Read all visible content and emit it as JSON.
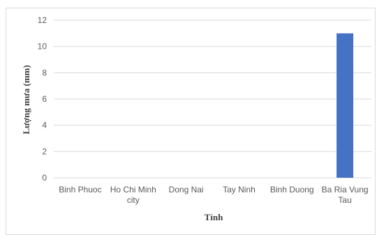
{
  "chart_data": {
    "type": "bar",
    "title": "",
    "xlabel": "Tỉnh",
    "ylabel": "Lượng mưa (mm)",
    "ylim": [
      0,
      12
    ],
    "yticks": [
      0,
      2,
      4,
      6,
      8,
      10,
      12
    ],
    "categories": [
      [
        "Binh Phuoc"
      ],
      [
        "Ho Chi Minh",
        "city"
      ],
      [
        "Dong Nai"
      ],
      [
        "Tay Ninh"
      ],
      [
        "Binh Duong"
      ],
      [
        "Ba Ria Vung",
        "Tau"
      ]
    ],
    "series": [
      {
        "values": [
          0,
          0,
          0,
          0,
          0,
          11
        ]
      }
    ],
    "grid": true,
    "legend": "none",
    "colors": {
      "bar": "#4472c4",
      "grid": "#d9d9d9",
      "text": "#595959"
    }
  }
}
